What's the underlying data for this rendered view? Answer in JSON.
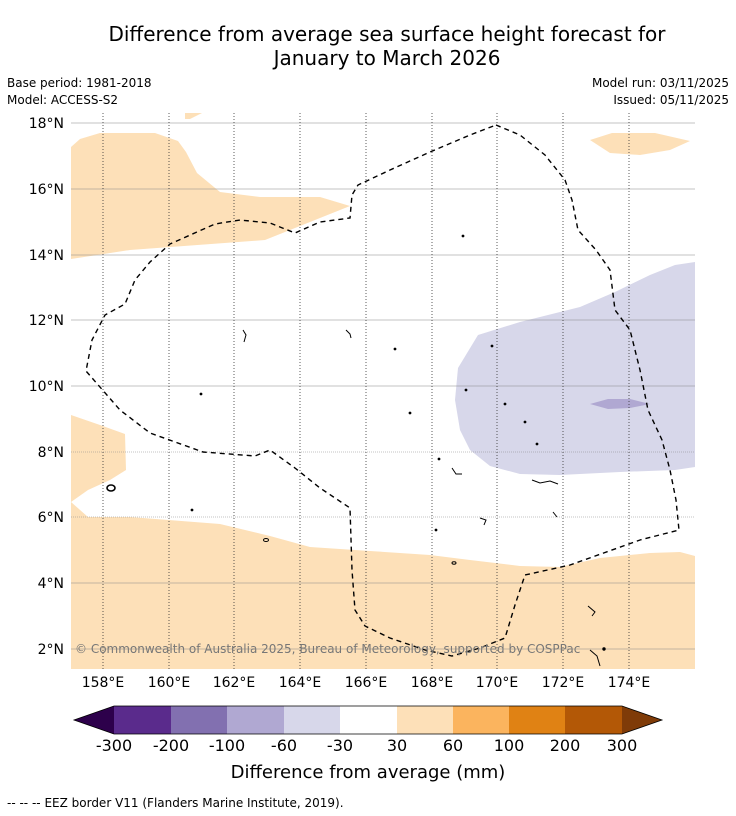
{
  "title": {
    "line1": "Difference from average sea surface height forecast for",
    "line2": "January to March 2026"
  },
  "meta": {
    "base_period": "Base period: 1981-2018",
    "model": "Model: ACCESS-S2",
    "model_run": "Model run: 03/11/2025",
    "issued": "Issued: 05/11/2025"
  },
  "map": {
    "lat_labels": [
      "18°N",
      "16°N",
      "14°N",
      "12°N",
      "10°N",
      "8°N",
      "6°N",
      "4°N",
      "2°N"
    ],
    "lon_labels": [
      "158°E",
      "160°E",
      "162°E",
      "164°E",
      "166°E",
      "168°E",
      "170°E",
      "172°E",
      "174°E"
    ],
    "copyright": "© Commonwealth of Australia 2025, Bureau of Meteorology, supported by COSPPac"
  },
  "colorbar": {
    "title": "Difference from average (mm)",
    "tick_labels": [
      "-300",
      "-200",
      "-100",
      "-60",
      "-30",
      "30",
      "60",
      "100",
      "200",
      "300"
    ],
    "colors": [
      "#2d004b",
      "#5a2b8c",
      "#8270b0",
      "#b0a8d2",
      "#d7d7ea",
      "#ffffff",
      "#fde0b8",
      "#fbb45e",
      "#e08214",
      "#b35806",
      "#7f3b08"
    ]
  },
  "footer": {
    "legend_symbol": "-- -- --",
    "legend_text": "EEZ border V11 (Flanders Marine Institute, 2019)."
  }
}
